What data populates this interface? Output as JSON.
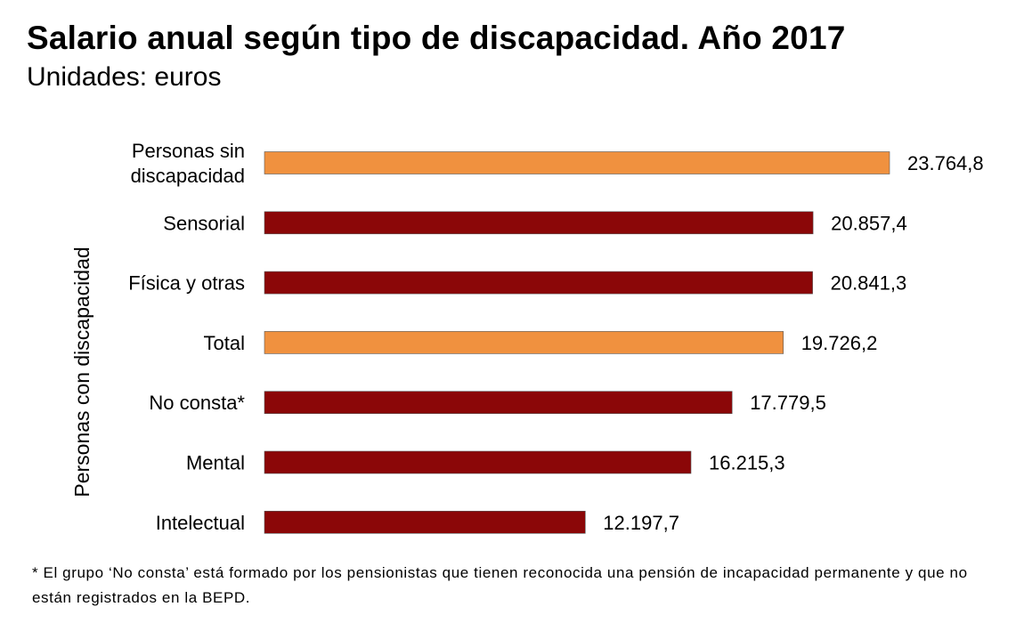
{
  "chart_data": {
    "type": "bar",
    "orientation": "horizontal",
    "title": "Salario anual según tipo de discapacidad. Año 2017",
    "subtitle": "Unidades: euros",
    "ylabel": "Personas con discapacidad",
    "xlim": [
      0,
      30000
    ],
    "categories": [
      "Personas sin discapacidad",
      "Sensorial",
      "Física y otras",
      "Total",
      "No consta*",
      "Mental",
      "Intelectual"
    ],
    "category_lines": [
      [
        "Personas sin",
        "discapacidad"
      ],
      [
        "Sensorial"
      ],
      [
        "Física y otras"
      ],
      [
        "Total"
      ],
      [
        "No consta*"
      ],
      [
        "Mental"
      ],
      [
        "Intelectual"
      ]
    ],
    "values": [
      23764.8,
      20857.4,
      20841.3,
      19726.2,
      17779.5,
      16215.3,
      12197.7
    ],
    "value_labels": [
      "23.764,8",
      "20.857,4",
      "20.841,3",
      "19.726,2",
      "17.779,5",
      "16.215,3",
      "12.197,7"
    ],
    "colors": [
      "#F0913F",
      "#8B0708",
      "#8B0708",
      "#F0913F",
      "#8B0708",
      "#8B0708",
      "#8B0708"
    ],
    "grid": false,
    "legend": "none"
  },
  "footnote": "* El grupo ‘No consta’ está formado por los pensionistas que tienen reconocida una pensión de incapacidad permanente y que no están registrados en la BEPD."
}
